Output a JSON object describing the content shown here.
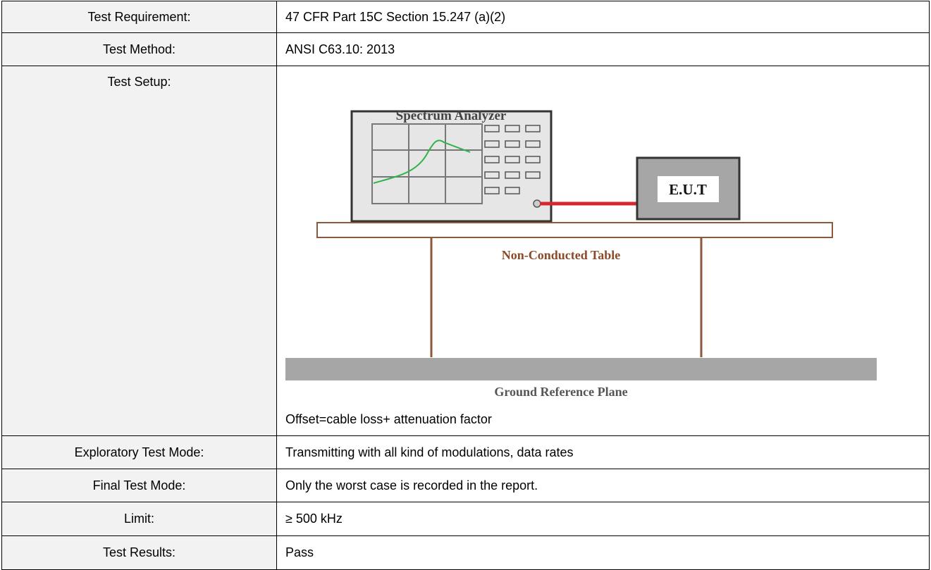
{
  "table": {
    "rows": [
      {
        "label": "Test Requirement:",
        "value": "47 CFR Part 15C Section 15.247 (a)(2)"
      },
      {
        "label": "Test Method:",
        "value": "ANSI C63.10: 2013"
      },
      {
        "label": "Test Setup:",
        "diagram": {
          "analyzer_label": "Spectrum Analyzer",
          "eut_label": "E.U.T",
          "table_label": "Non-Conducted Table",
          "ground_label": "Ground Reference Plane"
        },
        "note": "Offset=cable loss+ attenuation factor"
      },
      {
        "label": "Exploratory Test Mode:",
        "value": "Transmitting with all kind of modulations, data rates"
      },
      {
        "label": "Final Test Mode:",
        "value": "Only the worst case is recorded in the report."
      },
      {
        "label": "Limit:",
        "value": "≥ 500 kHz"
      },
      {
        "label": "Test Results:",
        "value": "Pass"
      }
    ]
  }
}
